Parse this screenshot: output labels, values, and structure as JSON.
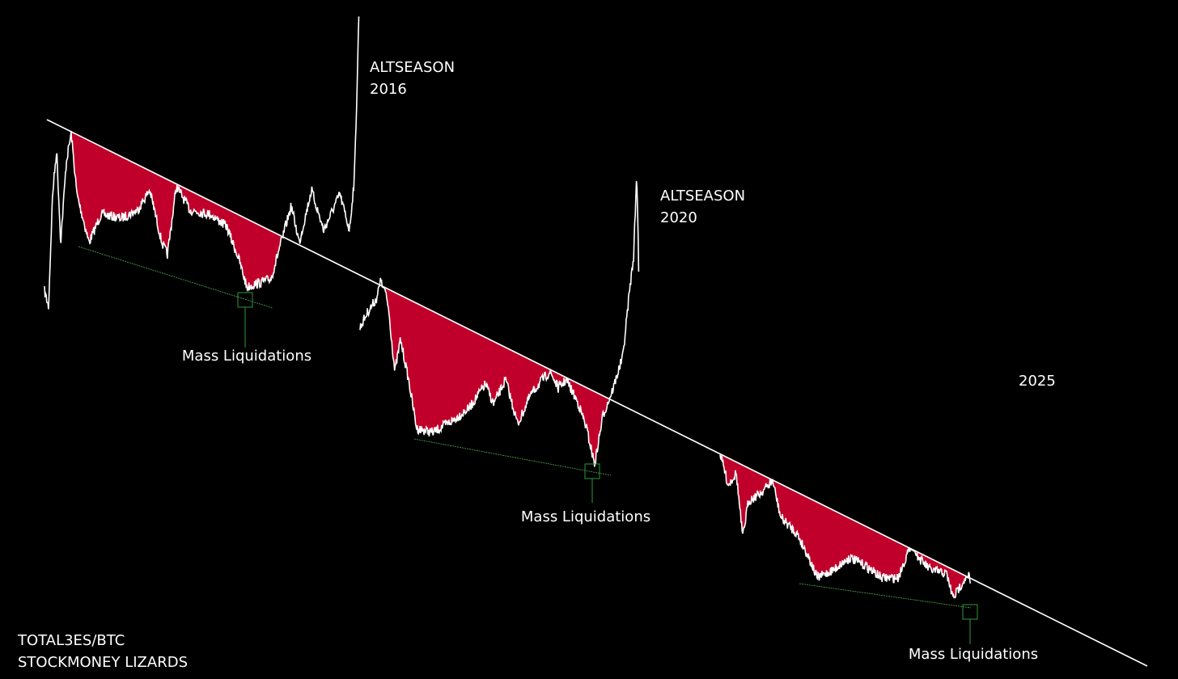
{
  "chart_data": {
    "type": "line",
    "title": "TOTAL3ES/BTC",
    "subtitle": "STOCKMONEY LIZARDS",
    "annotations": [
      {
        "text": "ALTSEASON",
        "year": "2016"
      },
      {
        "text": "ALTSEASON",
        "year": "2020"
      },
      {
        "text": "2025"
      },
      {
        "text": "Mass Liquidations"
      },
      {
        "text": "Mass Liquidations"
      },
      {
        "text": "Mass Liquidations"
      }
    ]
  }
}
